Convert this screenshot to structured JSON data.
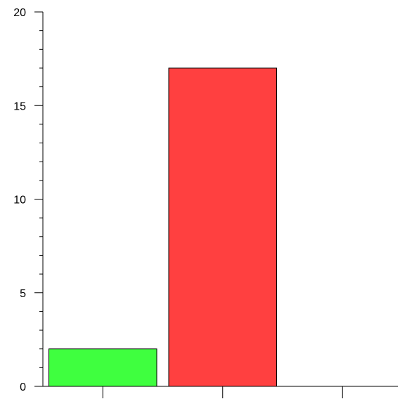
{
  "chart_data": {
    "type": "bar",
    "categories": [
      "",
      "",
      ""
    ],
    "values": [
      2,
      17,
      0
    ],
    "colors": [
      "#3fff3f",
      "#ff4040",
      "#ffffff"
    ],
    "bar_stroke": "#000000",
    "title": "",
    "xlabel": "",
    "ylabel": "",
    "ylim": [
      0,
      20
    ],
    "y_major_ticks": [
      0,
      5,
      10,
      15,
      20
    ],
    "y_major_tick_labels": [
      "0",
      "5",
      "10",
      "15",
      "20"
    ],
    "y_minor_step": 1,
    "grid": false,
    "legend": "none"
  }
}
